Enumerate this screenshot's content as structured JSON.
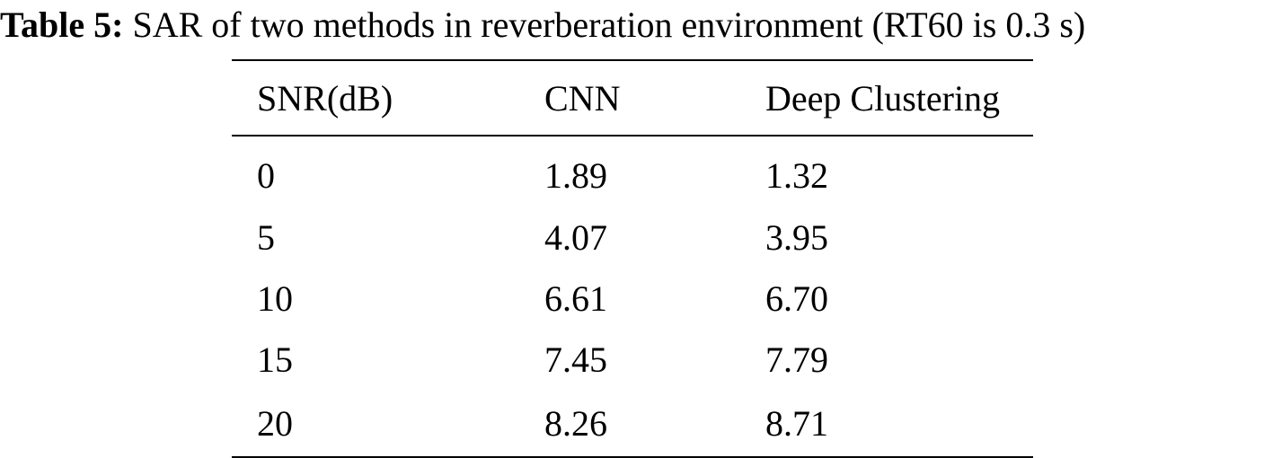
{
  "caption": {
    "label": "Table 5:",
    "text": "SAR of two methods in reverberation environment (RT60 is 0.3 s)"
  },
  "table": {
    "headers": [
      "SNR(dB)",
      "CNN",
      "Deep Clustering"
    ],
    "rows": [
      [
        "0",
        "1.89",
        "1.32"
      ],
      [
        "5",
        "4.07",
        "3.95"
      ],
      [
        "10",
        "6.61",
        "6.70"
      ],
      [
        "15",
        "7.45",
        "7.79"
      ],
      [
        "20",
        "8.26",
        "8.71"
      ]
    ]
  }
}
